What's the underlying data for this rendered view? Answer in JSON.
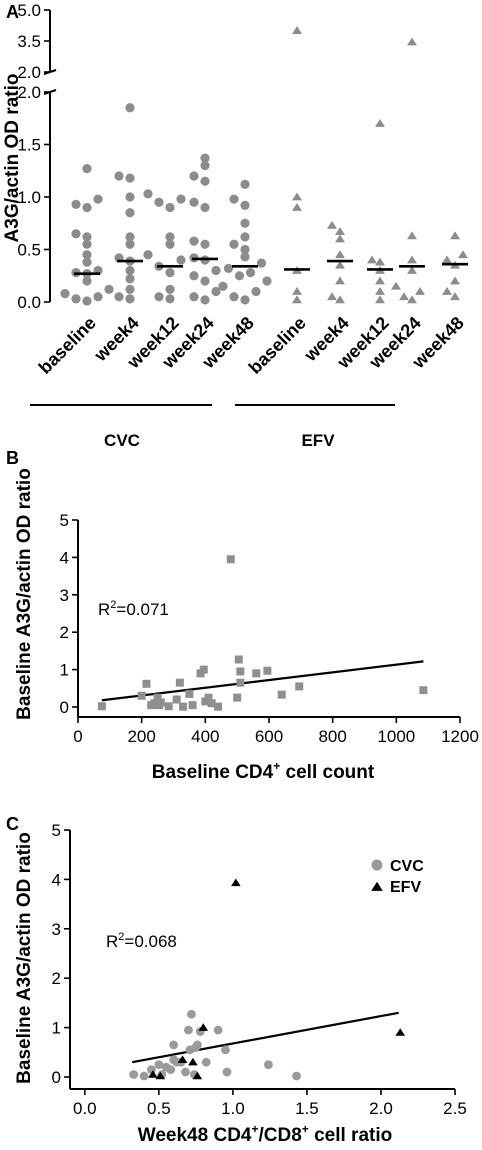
{
  "figure": {
    "panel_a": "A",
    "panel_b": "B",
    "panel_c": "C"
  },
  "colors": {
    "cvc": "#8c8c8c",
    "efv_a": "#8c8c8c",
    "efv_c": "#000000",
    "cvc_c": "#9a9a9a",
    "square": "#8f8f8f",
    "median": "#000000",
    "fit": "#000000"
  },
  "chart_data": [
    {
      "id": "A",
      "type": "scatter",
      "subtype": "dot plot with median lines",
      "ylabel": "A3G/actin OD ratio",
      "y_axis_broken": true,
      "ylim_lower": [
        0,
        2.0
      ],
      "ylim_upper": [
        2.0,
        5.0
      ],
      "yticks_lower": [
        "0.0",
        "0.5",
        "1.0",
        "1.5",
        "2.0"
      ],
      "yticks_upper": [
        "2.0",
        "3.5",
        "5.0"
      ],
      "categories": [
        "baseline",
        "week4",
        "week12",
        "week24",
        "week48",
        "baseline",
        "week4",
        "week12",
        "week24",
        "week48"
      ],
      "groups": [
        {
          "name": "CVC",
          "categories": [
            "baseline",
            "week4",
            "week12",
            "week24",
            "week48"
          ]
        },
        {
          "name": "EFV",
          "categories": [
            "baseline",
            "week4",
            "week12",
            "week24",
            "week48"
          ]
        }
      ],
      "series": [
        {
          "group": "CVC",
          "marker": "circle",
          "columns": [
            {
              "category": "baseline",
              "median": 0.27,
              "values": [
                1.27,
                0.98,
                0.93,
                0.9,
                0.65,
                0.62,
                0.55,
                0.45,
                0.38,
                0.3,
                0.28,
                0.27,
                0.2,
                0.12,
                0.08,
                0.05,
                0.03,
                0.01
              ]
            },
            {
              "category": "week4",
              "median": 0.39,
              "values": [
                1.85,
                1.2,
                1.18,
                1.0,
                0.85,
                0.62,
                0.55,
                0.42,
                0.39,
                0.3,
                0.22,
                0.12,
                0.05,
                0.03
              ]
            },
            {
              "category": "week12",
              "median": 0.34,
              "values": [
                1.03,
                0.98,
                0.95,
                0.9,
                0.62,
                0.55,
                0.45,
                0.4,
                0.34,
                0.28,
                0.12,
                0.05,
                0.03
              ]
            },
            {
              "category": "week24",
              "median": 0.41,
              "values": [
                1.37,
                1.3,
                1.2,
                1.15,
                0.95,
                0.9,
                0.58,
                0.55,
                0.42,
                0.4,
                0.3,
                0.25,
                0.2,
                0.1,
                0.05,
                0.02
              ]
            },
            {
              "category": "week48",
              "median": 0.34,
              "values": [
                1.12,
                0.98,
                0.92,
                0.75,
                0.62,
                0.55,
                0.5,
                0.43,
                0.37,
                0.32,
                0.28,
                0.25,
                0.2,
                0.15,
                0.1,
                0.05,
                0.02
              ]
            }
          ]
        },
        {
          "group": "EFV",
          "marker": "triangle",
          "columns": [
            {
              "category": "baseline",
              "median": 0.31,
              "values": [
                4.0,
                1.0,
                0.9,
                0.3,
                0.1,
                0.02
              ]
            },
            {
              "category": "week4",
              "median": 0.39,
              "values": [
                0.73,
                0.67,
                0.6,
                0.45,
                0.35,
                0.2,
                0.05,
                0.02
              ]
            },
            {
              "category": "week12",
              "median": 0.31,
              "values": [
                1.7,
                0.4,
                0.38,
                0.3,
                0.2,
                0.1,
                0.02
              ]
            },
            {
              "category": "week24",
              "median": 0.34,
              "values": [
                3.45,
                0.63,
                0.4,
                0.3,
                0.15,
                0.1,
                0.05,
                0.02
              ]
            },
            {
              "category": "week48",
              "median": 0.36,
              "values": [
                0.63,
                0.45,
                0.4,
                0.35,
                0.2,
                0.1,
                0.05
              ]
            }
          ]
        }
      ]
    },
    {
      "id": "B",
      "type": "scatter",
      "xlabel": "Baseline CD4",
      "xlabel_sup": "+",
      "xlabel_suffix": " cell count",
      "ylabel": "Baseline A3G/actin OD ratio",
      "xlim": [
        0,
        1200
      ],
      "ylim": [
        0,
        5
      ],
      "xticks": [
        "0",
        "200",
        "400",
        "600",
        "800",
        "1000",
        "1200"
      ],
      "yticks": [
        "0",
        "1",
        "2",
        "3",
        "4",
        "5"
      ],
      "annotation": {
        "prefix": "R",
        "sup": "2",
        "value": "=0.071"
      },
      "fit": {
        "x": [
          75,
          1085
        ],
        "y": [
          0.18,
          1.22
        ]
      },
      "points": [
        [
          75,
          0.02
        ],
        [
          200,
          0.3
        ],
        [
          215,
          0.62
        ],
        [
          230,
          0.05
        ],
        [
          240,
          0.1
        ],
        [
          250,
          0.25
        ],
        [
          255,
          0.05
        ],
        [
          260,
          0.12
        ],
        [
          285,
          0.02
        ],
        [
          310,
          0.2
        ],
        [
          320,
          0.65
        ],
        [
          330,
          0.01
        ],
        [
          350,
          0.35
        ],
        [
          360,
          0.05
        ],
        [
          385,
          0.9
        ],
        [
          395,
          1.0
        ],
        [
          400,
          0.15
        ],
        [
          410,
          0.25
        ],
        [
          420,
          0.1
        ],
        [
          440,
          0.01
        ],
        [
          480,
          3.95
        ],
        [
          500,
          0.25
        ],
        [
          505,
          1.27
        ],
        [
          510,
          0.65
        ],
        [
          510,
          0.95
        ],
        [
          560,
          0.9
        ],
        [
          595,
          0.97
        ],
        [
          640,
          0.33
        ],
        [
          695,
          0.55
        ],
        [
          1085,
          0.45
        ]
      ]
    },
    {
      "id": "C",
      "type": "scatter",
      "xlabel": "Week48 CD4",
      "xlabel_sup1": "+",
      "xlabel_mid": "/CD8",
      "xlabel_sup2": "+",
      "xlabel_suffix": " cell ratio",
      "ylabel": "Baseline A3G/actin OD ratio",
      "xlim": [
        -0.1,
        2.5
      ],
      "ylim": [
        0,
        5
      ],
      "xticks": [
        "0.0",
        "0.5",
        "1.0",
        "1.5",
        "2.0",
        "2.5"
      ],
      "yticks": [
        "0",
        "1",
        "2",
        "3",
        "4",
        "5"
      ],
      "annotation": {
        "prefix": "R",
        "sup": "2",
        "value": "=0.068"
      },
      "legend": {
        "position": "top-right",
        "entries": [
          "CVC",
          "EFV"
        ]
      },
      "fit": {
        "x": [
          0.32,
          2.12
        ],
        "y": [
          0.3,
          1.3
        ]
      },
      "series": [
        {
          "name": "CVC",
          "marker": "circle",
          "points": [
            [
              0.33,
              0.05
            ],
            [
              0.4,
              0.02
            ],
            [
              0.45,
              0.15
            ],
            [
              0.5,
              0.25
            ],
            [
              0.52,
              0.05
            ],
            [
              0.55,
              0.2
            ],
            [
              0.58,
              0.15
            ],
            [
              0.6,
              0.35
            ],
            [
              0.6,
              0.65
            ],
            [
              0.62,
              0.3
            ],
            [
              0.65,
              0.3
            ],
            [
              0.68,
              0.1
            ],
            [
              0.7,
              0.95
            ],
            [
              0.71,
              0.55
            ],
            [
              0.72,
              1.27
            ],
            [
              0.74,
              0.05
            ],
            [
              0.75,
              0.6
            ],
            [
              0.76,
              0.65
            ],
            [
              0.78,
              0.92
            ],
            [
              0.82,
              0.3
            ],
            [
              0.9,
              0.95
            ],
            [
              0.95,
              0.55
            ],
            [
              0.96,
              0.1
            ],
            [
              1.24,
              0.25
            ],
            [
              1.43,
              0.02
            ]
          ]
        },
        {
          "name": "EFV",
          "marker": "triangle",
          "points": [
            [
              0.46,
              0.05
            ],
            [
              0.51,
              0.02
            ],
            [
              0.66,
              0.35
            ],
            [
              0.73,
              0.3
            ],
            [
              0.76,
              0.02
            ],
            [
              0.8,
              1.0
            ],
            [
              1.02,
              3.93
            ],
            [
              2.13,
              0.9
            ]
          ]
        }
      ]
    }
  ]
}
